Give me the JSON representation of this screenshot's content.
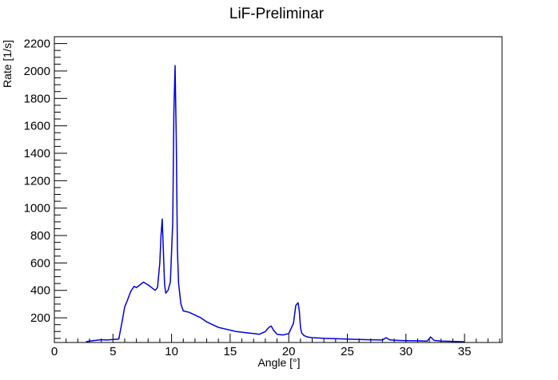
{
  "chart_data": {
    "type": "line",
    "title": "LiF-Preliminar",
    "xlabel": "Angle [°]",
    "ylabel": "Rate [1/s]",
    "xlim": [
      0,
      38.2
    ],
    "ylim": [
      20,
      2250
    ],
    "x_ticks": [
      0,
      5,
      10,
      15,
      20,
      25,
      30,
      35
    ],
    "y_ticks": [
      200,
      400,
      600,
      800,
      1000,
      1200,
      1400,
      1600,
      1800,
      2000,
      2200
    ],
    "grid": false,
    "legend": "none",
    "series": [
      {
        "color": "#0000dd",
        "x": [
          2.7,
          3.0,
          3.5,
          4.0,
          4.5,
          5.0,
          5.5,
          5.8,
          6.0,
          6.2,
          6.5,
          6.8,
          7.0,
          7.3,
          7.6,
          7.8,
          8.0,
          8.3,
          8.6,
          8.8,
          9.0,
          9.1,
          9.2,
          9.3,
          9.4,
          9.5,
          9.7,
          9.9,
          10.1,
          10.2,
          10.3,
          10.4,
          10.5,
          10.6,
          10.8,
          11.0,
          11.5,
          12.0,
          12.5,
          13.0,
          13.5,
          14.0,
          14.5,
          15.0,
          15.5,
          16.0,
          16.5,
          17.0,
          17.5,
          18.0,
          18.3,
          18.5,
          18.7,
          19.0,
          19.5,
          20.0,
          20.4,
          20.6,
          20.8,
          20.9,
          21.0,
          21.1,
          21.3,
          21.6,
          22.0,
          23.0,
          24.0,
          25.0,
          26.0,
          27.0,
          28.0,
          28.3,
          28.6,
          29.0,
          30.0,
          31.0,
          31.8,
          32.1,
          32.4,
          33.0,
          34.0,
          35.0
        ],
        "y": [
          25,
          30,
          35,
          40,
          38,
          42,
          45,
          180,
          280,
          320,
          390,
          430,
          420,
          440,
          460,
          450,
          440,
          420,
          400,
          420,
          600,
          800,
          920,
          700,
          450,
          380,
          400,
          460,
          900,
          1700,
          2040,
          1500,
          700,
          450,
          300,
          250,
          240,
          220,
          200,
          170,
          150,
          130,
          120,
          110,
          100,
          95,
          90,
          85,
          80,
          100,
          130,
          140,
          110,
          80,
          75,
          85,
          160,
          290,
          310,
          250,
          130,
          90,
          70,
          60,
          55,
          50,
          48,
          45,
          42,
          40,
          38,
          55,
          40,
          36,
          33,
          32,
          30,
          60,
          35,
          30,
          28,
          25
        ]
      }
    ]
  }
}
